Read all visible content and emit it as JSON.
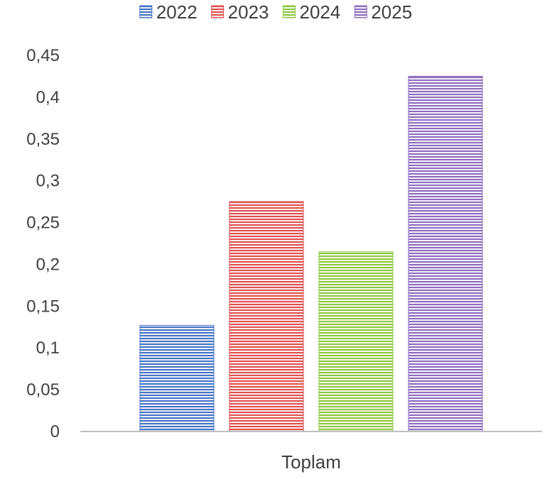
{
  "chart_data": {
    "type": "bar",
    "categories": [
      "Toplam"
    ],
    "series": [
      {
        "name": "2022",
        "values": [
          0.127
        ],
        "color": "#4472C4"
      },
      {
        "name": "2023",
        "values": [
          0.275
        ],
        "color": "#E04F4F"
      },
      {
        "name": "2024",
        "values": [
          0.215
        ],
        "color": "#8DC63F"
      },
      {
        "name": "2025",
        "values": [
          0.425
        ],
        "color": "#8E6BBF"
      }
    ],
    "title": "",
    "xlabel": "",
    "ylabel": "",
    "ylim": [
      0,
      0.45
    ],
    "yticks": [
      0,
      0.05,
      0.1,
      0.15,
      0.2,
      0.25,
      0.3,
      0.35,
      0.4,
      0.45
    ],
    "ytick_labels": [
      "0",
      "0,05",
      "0,1",
      "0,15",
      "0,2",
      "0,25",
      "0,3",
      "0,35",
      "0,4",
      "0,45"
    ],
    "grid": false,
    "legend_position": "top",
    "bar_fill": "horizontal-stripes"
  }
}
